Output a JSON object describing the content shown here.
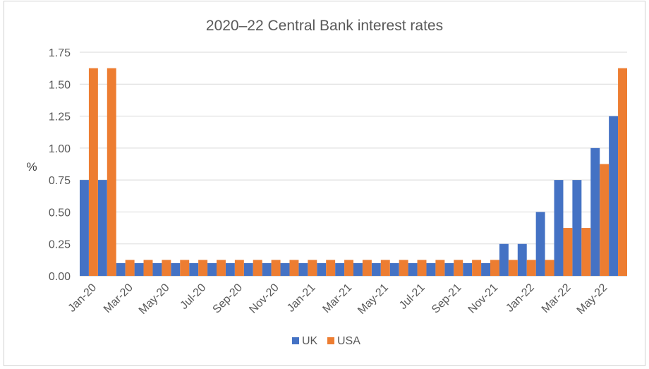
{
  "chart_data": {
    "type": "bar",
    "title": "2020–22 Central Bank interest rates",
    "xlabel": "",
    "ylabel": "%",
    "ylim": [
      0,
      1.75
    ],
    "yticks": [
      "0.00",
      "0.25",
      "0.50",
      "0.75",
      "1.00",
      "1.25",
      "1.50",
      "1.75"
    ],
    "grid": true,
    "legend_position": "bottom",
    "categories": [
      "Jan-20",
      "Feb-20",
      "Mar-20",
      "Apr-20",
      "May-20",
      "Jun-20",
      "Jul-20",
      "Aug-20",
      "Sep-20",
      "Oct-20",
      "Nov-20",
      "Dec-20",
      "Jan-21",
      "Feb-21",
      "Mar-21",
      "Apr-21",
      "May-21",
      "Jun-21",
      "Jul-21",
      "Aug-21",
      "Sep-21",
      "Oct-21",
      "Nov-21",
      "Dec-21",
      "Jan-22",
      "Feb-22",
      "Mar-22",
      "Apr-22",
      "May-22",
      "Jun-22"
    ],
    "tick_labels": [
      "Jan-20",
      "Mar-20",
      "May-20",
      "Jul-20",
      "Sep-20",
      "Nov-20",
      "Jan-21",
      "Mar-21",
      "May-21",
      "Jul-21",
      "Sep-21",
      "Nov-21",
      "Jan-22",
      "Mar-22",
      "May-22"
    ],
    "series": [
      {
        "name": "UK",
        "color": "#4472c4",
        "values": [
          0.75,
          0.75,
          0.1,
          0.1,
          0.1,
          0.1,
          0.1,
          0.1,
          0.1,
          0.1,
          0.1,
          0.1,
          0.1,
          0.1,
          0.1,
          0.1,
          0.1,
          0.1,
          0.1,
          0.1,
          0.1,
          0.1,
          0.1,
          0.25,
          0.25,
          0.5,
          0.75,
          0.75,
          1.0,
          1.25
        ]
      },
      {
        "name": "USA",
        "color": "#ed7d31",
        "values": [
          1.625,
          1.625,
          0.125,
          0.125,
          0.125,
          0.125,
          0.125,
          0.125,
          0.125,
          0.125,
          0.125,
          0.125,
          0.125,
          0.125,
          0.125,
          0.125,
          0.125,
          0.125,
          0.125,
          0.125,
          0.125,
          0.125,
          0.125,
          0.125,
          0.125,
          0.125,
          0.375,
          0.375,
          0.875,
          1.625
        ]
      }
    ]
  }
}
